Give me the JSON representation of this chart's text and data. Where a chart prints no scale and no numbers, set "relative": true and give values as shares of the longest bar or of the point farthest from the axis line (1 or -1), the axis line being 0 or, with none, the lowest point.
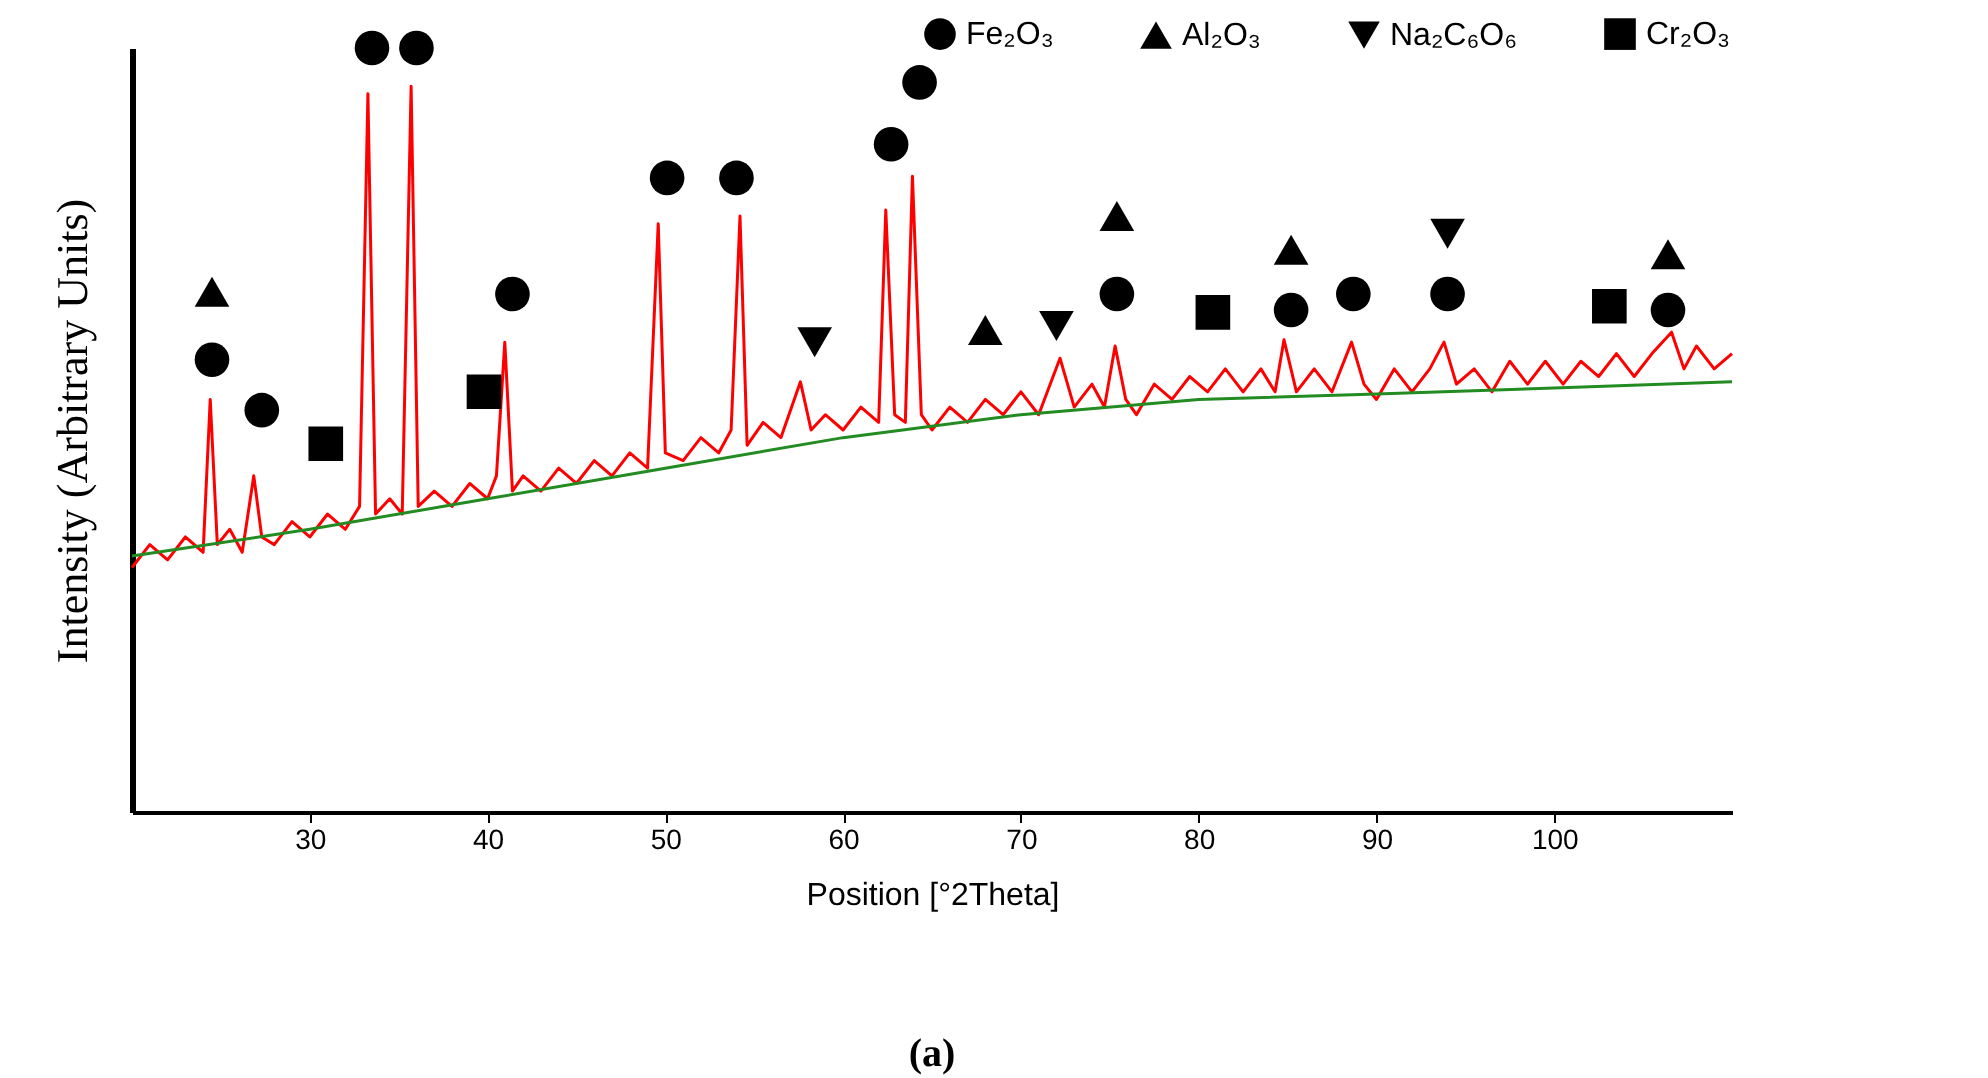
{
  "chart_data": {
    "type": "line",
    "title": "(a)",
    "xlabel": "Position [°2Theta]",
    "ylabel": "Intensity (Arbitrary Units)",
    "relative": true,
    "xlim": [
      20,
      110
    ],
    "xticks": [
      30,
      40,
      50,
      60,
      70,
      80,
      90,
      100
    ],
    "legend": "top right",
    "series": [
      {
        "color": "#ff0000",
        "x": [
          20,
          21,
          22,
          23,
          24,
          24.4,
          24.8,
          25.5,
          26.2,
          26.85,
          27.3,
          28,
          29,
          30,
          31,
          32,
          32.8,
          33.27,
          33.7,
          34.5,
          35.2,
          35.7,
          36.1,
          37,
          38,
          39,
          40,
          40.5,
          40.97,
          41.4,
          42,
          43,
          44,
          45,
          46,
          47,
          48,
          49,
          49.6,
          50,
          51,
          52,
          53,
          53.7,
          54.2,
          54.6,
          55.5,
          56.5,
          57.6,
          58.2,
          59,
          60,
          61,
          62,
          62.4,
          62.9,
          63.5,
          63.9,
          64.4,
          65,
          66,
          67,
          68,
          69,
          70,
          71,
          72.2,
          73,
          74,
          74.7,
          75.3,
          75.9,
          76.5,
          77.5,
          78.5,
          79.5,
          80.5,
          81.5,
          82.5,
          83.5,
          84.3,
          84.8,
          85.5,
          86.5,
          87.5,
          88.6,
          89.3,
          90,
          91,
          92,
          93,
          93.8,
          94.5,
          95.5,
          96.5,
          97.5,
          98.5,
          99.5,
          100.5,
          101.5,
          102.5,
          103.5,
          104.5,
          105.5,
          106.6,
          107.3,
          108,
          109,
          110
        ],
        "values": [
          0.32,
          0.35,
          0.33,
          0.36,
          0.34,
          0.54,
          0.35,
          0.37,
          0.34,
          0.44,
          0.36,
          0.35,
          0.38,
          0.36,
          0.39,
          0.37,
          0.4,
          0.94,
          0.39,
          0.41,
          0.39,
          0.95,
          0.4,
          0.42,
          0.4,
          0.43,
          0.41,
          0.44,
          0.615,
          0.42,
          0.44,
          0.42,
          0.45,
          0.43,
          0.46,
          0.44,
          0.47,
          0.45,
          0.77,
          0.47,
          0.46,
          0.49,
          0.47,
          0.5,
          0.78,
          0.48,
          0.51,
          0.49,
          0.563,
          0.5,
          0.52,
          0.5,
          0.53,
          0.51,
          0.788,
          0.52,
          0.51,
          0.832,
          0.52,
          0.5,
          0.53,
          0.51,
          0.54,
          0.52,
          0.55,
          0.52,
          0.594,
          0.53,
          0.56,
          0.53,
          0.61,
          0.54,
          0.52,
          0.56,
          0.54,
          0.57,
          0.55,
          0.58,
          0.55,
          0.58,
          0.55,
          0.618,
          0.55,
          0.58,
          0.55,
          0.615,
          0.56,
          0.54,
          0.58,
          0.55,
          0.58,
          0.615,
          0.56,
          0.58,
          0.55,
          0.59,
          0.56,
          0.59,
          0.56,
          0.59,
          0.57,
          0.6,
          0.57,
          0.6,
          0.628,
          0.58,
          0.61,
          0.58,
          0.6
        ]
      },
      {
        "color": "#228b22",
        "x": [
          20,
          30,
          40,
          50,
          60,
          70,
          80,
          90,
          100,
          110
        ],
        "values": [
          0.335,
          0.37,
          0.41,
          0.45,
          0.49,
          0.52,
          0.54,
          0.547,
          0.555,
          0.563
        ]
      },
      {
        "name": "Fe₂O₃",
        "type": "scatter",
        "marker": "circle",
        "color": "#000000",
        "x": [
          24.5,
          27.3,
          33.5,
          36.0,
          41.4,
          50.1,
          54.0,
          62.7,
          64.3,
          75.4,
          85.2,
          88.7,
          94.0,
          106.4
        ],
        "values": [
          0.592,
          0.526,
          1.0,
          1.0,
          0.678,
          0.83,
          0.83,
          0.874,
          0.955,
          0.678,
          0.657,
          0.678,
          0.678,
          0.657
        ]
      },
      {
        "name": "Al₂O₃",
        "type": "scatter",
        "marker": "triangle",
        "color": "#000000",
        "x": [
          24.5,
          68.0,
          75.4,
          85.2,
          106.4
        ],
        "values": [
          0.681,
          0.631,
          0.78,
          0.736,
          0.73
        ]
      },
      {
        "name": "Na₂C₆O₆",
        "type": "scatter",
        "marker": "triangle-down",
        "color": "#000000",
        "x": [
          58.4,
          72.0,
          94.0
        ],
        "values": [
          0.615,
          0.636,
          0.757
        ]
      },
      {
        "name": "Cr₂O₃",
        "type": "scatter",
        "marker": "square",
        "color": "#000000",
        "x": [
          30.9,
          39.8,
          80.8,
          103.1
        ],
        "values": [
          0.482,
          0.55,
          0.654,
          0.662
        ]
      }
    ]
  }
}
